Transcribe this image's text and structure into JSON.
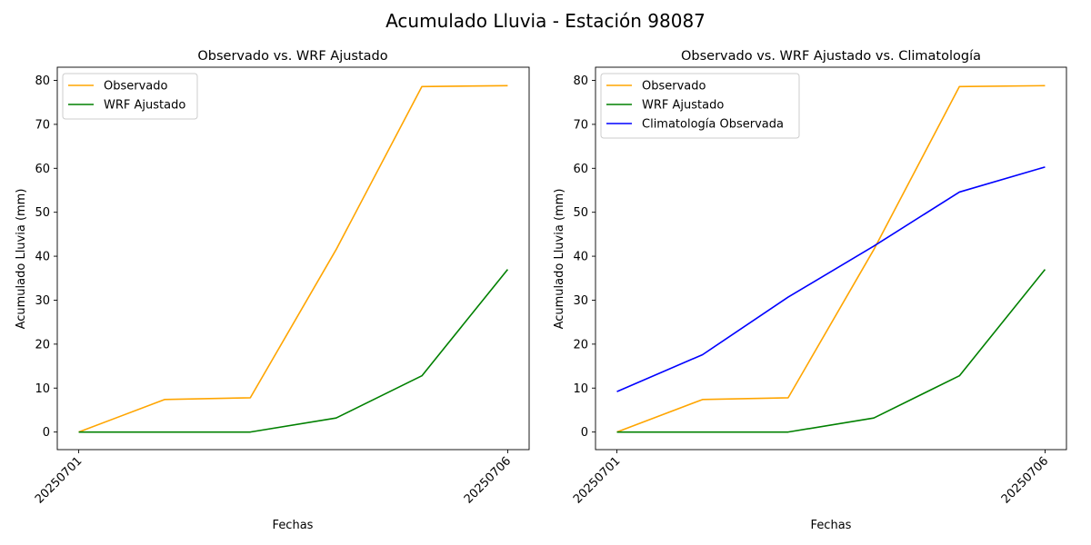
{
  "figure": {
    "suptitle": "Acumulado Lluvia - Estación 98087"
  },
  "chart_data": [
    {
      "type": "line",
      "title": "Observado vs. WRF Ajustado",
      "xlabel": "Fechas",
      "ylabel": "Acumulado Lluvia (mm)",
      "x": [
        1,
        2,
        3,
        4,
        5,
        6
      ],
      "x_ticks": [
        {
          "x": 1,
          "label": "20250701"
        },
        {
          "x": 6,
          "label": "20250706"
        }
      ],
      "xlim": [
        0.75,
        6.25
      ],
      "ylim": [
        -4,
        83
      ],
      "y_ticks": [
        0,
        10,
        20,
        30,
        40,
        50,
        60,
        70,
        80
      ],
      "grid": false,
      "legend_position": "upper-left",
      "series": [
        {
          "name": "Observado",
          "color": "#ffa500",
          "values": [
            0,
            7.4,
            7.8,
            41.5,
            78.6,
            78.8
          ]
        },
        {
          "name": "WRF Ajustado",
          "color": "#008000",
          "values": [
            0,
            0,
            0,
            3.2,
            12.8,
            37.0
          ]
        }
      ]
    },
    {
      "type": "line",
      "title": "Observado vs. WRF Ajustado vs. Climatología",
      "xlabel": "Fechas",
      "ylabel": "Acumulado Lluvia (mm)",
      "x": [
        1,
        2,
        3,
        4,
        5,
        6
      ],
      "x_ticks": [
        {
          "x": 1,
          "label": "20250701"
        },
        {
          "x": 6,
          "label": "20250706"
        }
      ],
      "xlim": [
        0.75,
        6.25
      ],
      "ylim": [
        -4,
        83
      ],
      "y_ticks": [
        0,
        10,
        20,
        30,
        40,
        50,
        60,
        70,
        80
      ],
      "grid": false,
      "legend_position": "upper-left",
      "series": [
        {
          "name": "Observado",
          "color": "#ffa500",
          "values": [
            0,
            7.4,
            7.8,
            41.5,
            78.6,
            78.8
          ]
        },
        {
          "name": "WRF Ajustado",
          "color": "#008000",
          "values": [
            0,
            0,
            0,
            3.2,
            12.8,
            37.0
          ]
        },
        {
          "name": "Climatología Observada",
          "color": "#0000ff",
          "values": [
            9.2,
            17.6,
            30.7,
            42.3,
            54.6,
            60.3
          ]
        }
      ]
    }
  ]
}
